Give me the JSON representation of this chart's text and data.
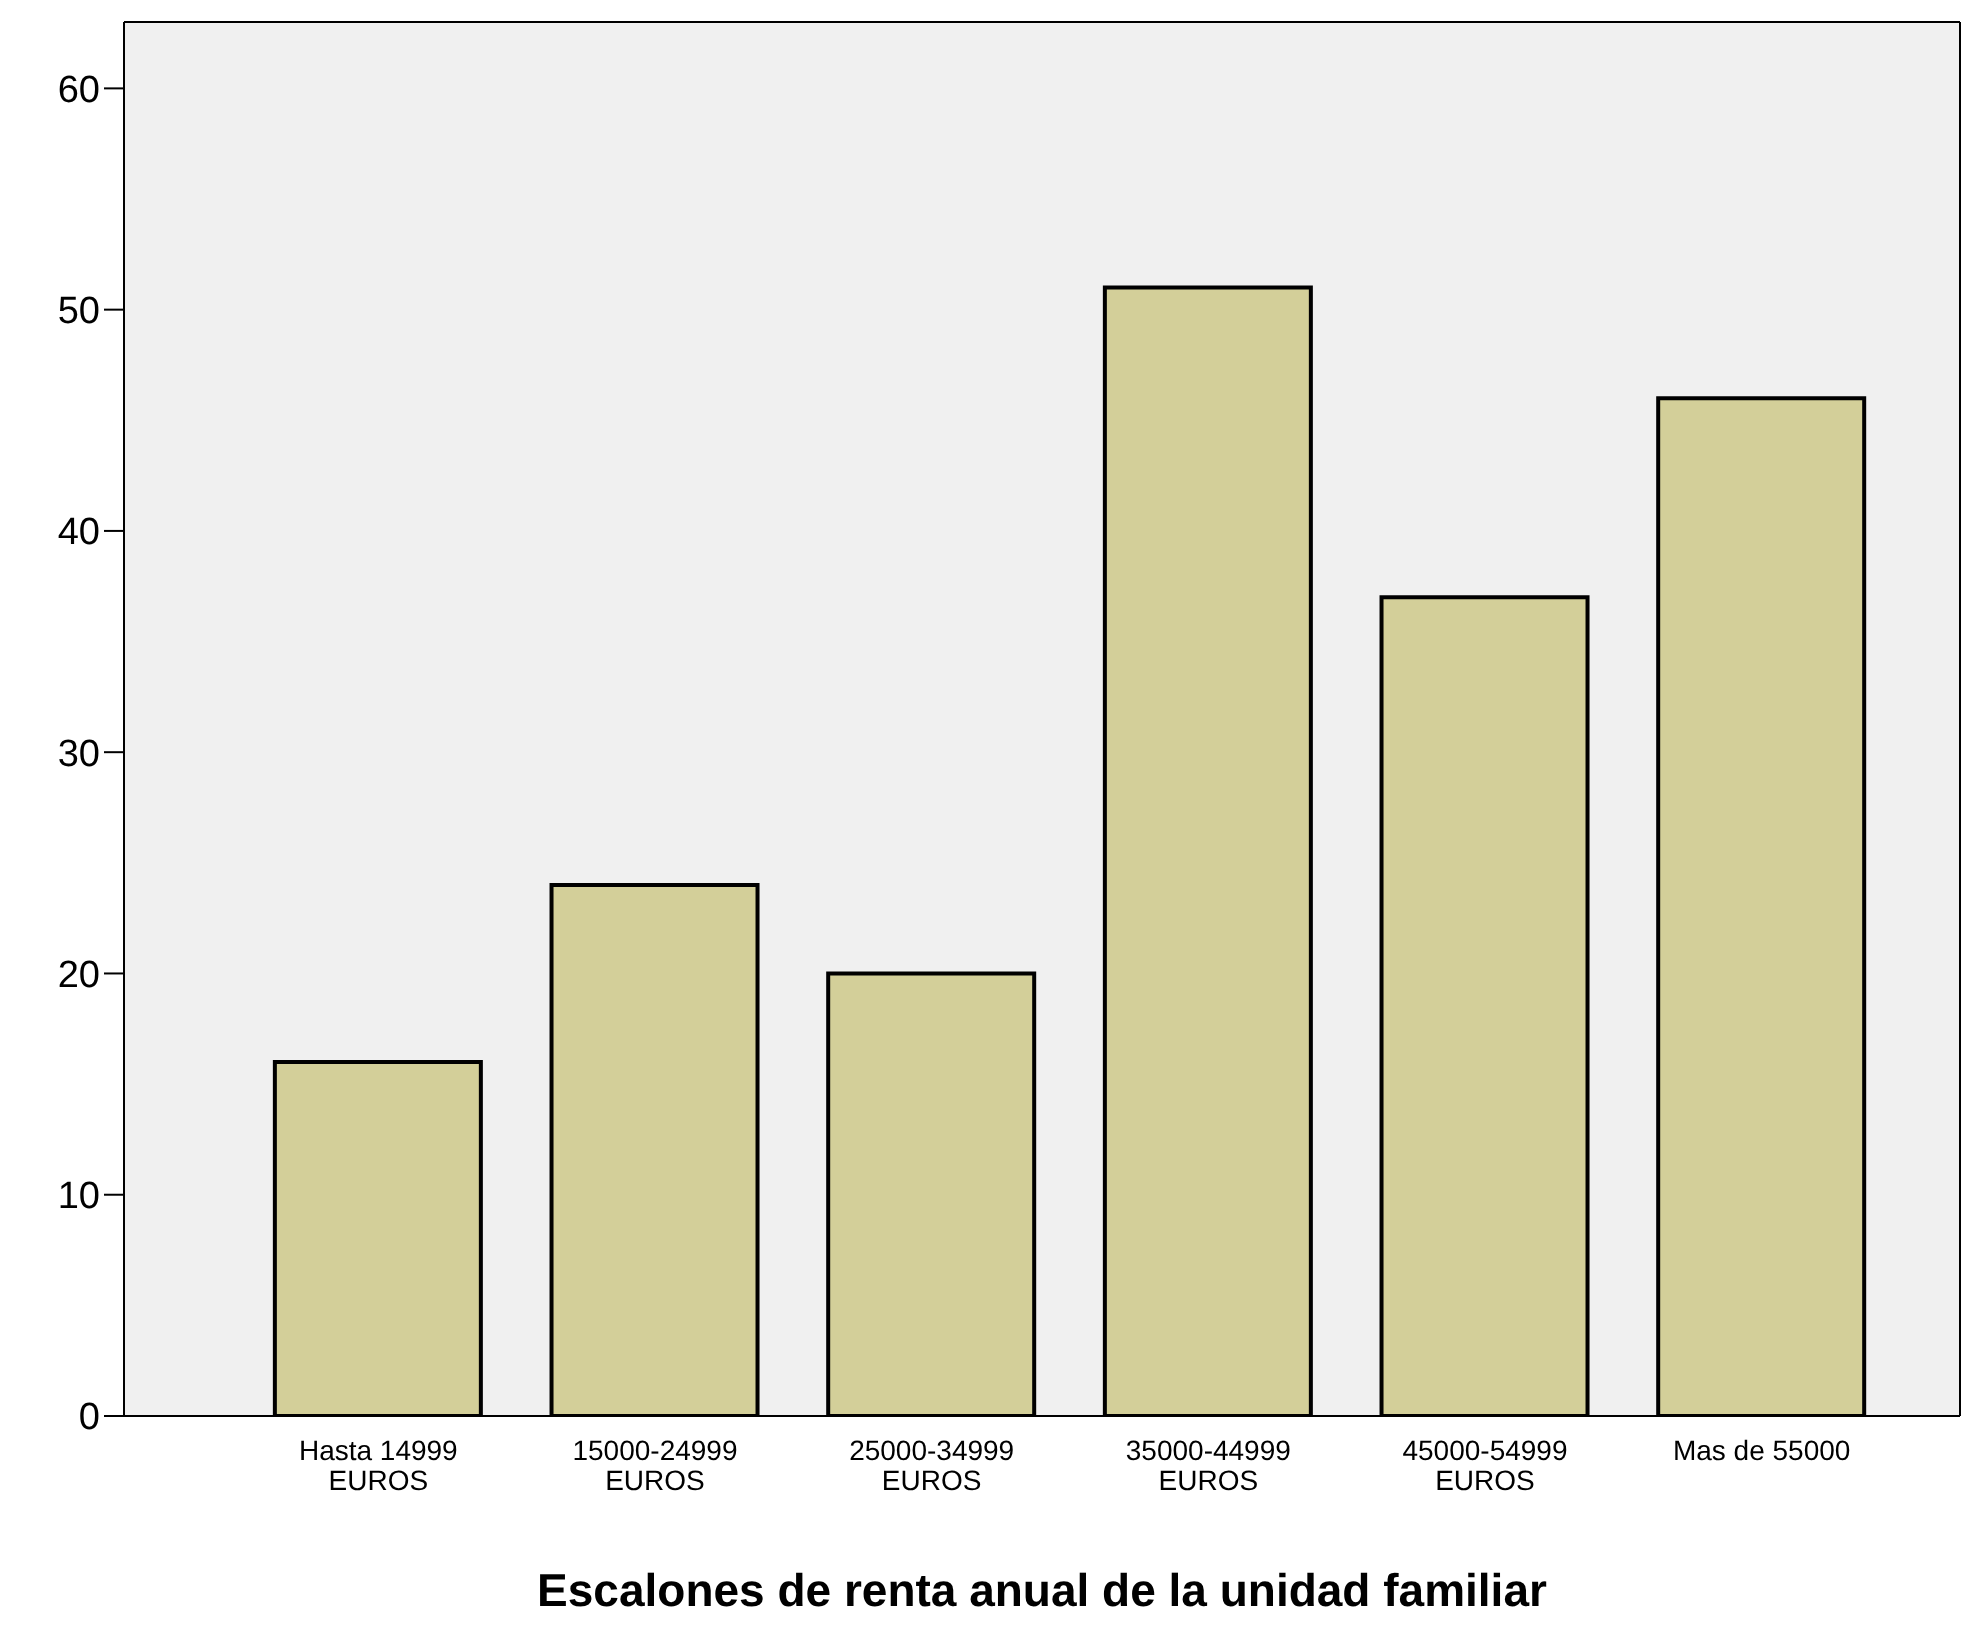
{
  "chart_data": {
    "type": "bar",
    "xlabel": "Escalones de renta anual de la unidad familiar",
    "categories": [
      "Hasta 14999\nEUROS",
      "15000-24999\nEUROS",
      "25000-34999\nEUROS",
      "35000-44999\nEUROS",
      "45000-54999\nEUROS",
      "Mas de 55000"
    ],
    "values": [
      16,
      24,
      20,
      51,
      37,
      46
    ],
    "color": "#d3cf99",
    "ylim": [
      0,
      63
    ],
    "yticks": [
      0,
      10,
      20,
      30,
      40,
      50,
      60
    ],
    "grid": false
  }
}
